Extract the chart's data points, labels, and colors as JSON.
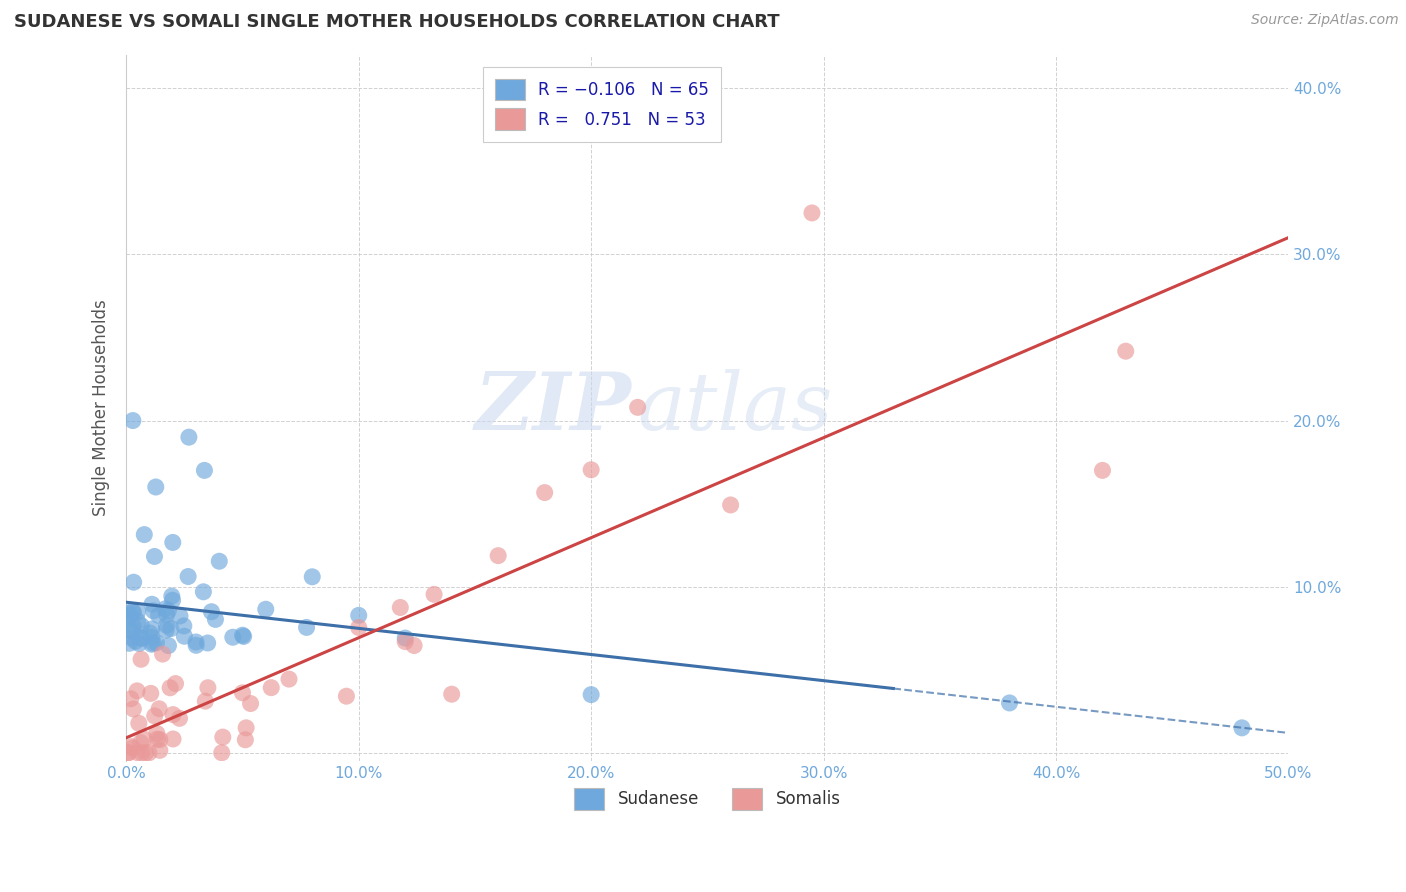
{
  "title": "SUDANESE VS SOMALI SINGLE MOTHER HOUSEHOLDS CORRELATION CHART",
  "source": "Source: ZipAtlas.com",
  "ylabel": "Single Mother Households",
  "xlim": [
    0,
    0.5
  ],
  "ylim": [
    -0.005,
    0.42
  ],
  "xticks": [
    0.0,
    0.1,
    0.2,
    0.3,
    0.4,
    0.5
  ],
  "yticks": [
    0.0,
    0.1,
    0.2,
    0.3,
    0.4
  ],
  "xtick_labels": [
    "0.0%",
    "10.0%",
    "20.0%",
    "30.0%",
    "40.0%",
    "50.0%"
  ],
  "ytick_labels_right": [
    "",
    "10.0%",
    "20.0%",
    "30.0%",
    "40.0%"
  ],
  "blue_R": -0.106,
  "blue_N": 65,
  "pink_R": 0.751,
  "pink_N": 53,
  "blue_color": "#6fa8dc",
  "pink_color": "#ea9999",
  "blue_line_color": "#3d6fa8",
  "pink_line_color": "#cc4444",
  "legend_label_blue": "Sudanese",
  "legend_label_pink": "Somalis",
  "watermark_zip": "ZIP",
  "watermark_atlas": "atlas",
  "background_color": "#ffffff",
  "grid_color": "#cccccc",
  "title_color": "#333333",
  "axis_label_color": "#555555",
  "tick_color": "#6fa8dc",
  "blue_seed": 101,
  "pink_seed": 202
}
